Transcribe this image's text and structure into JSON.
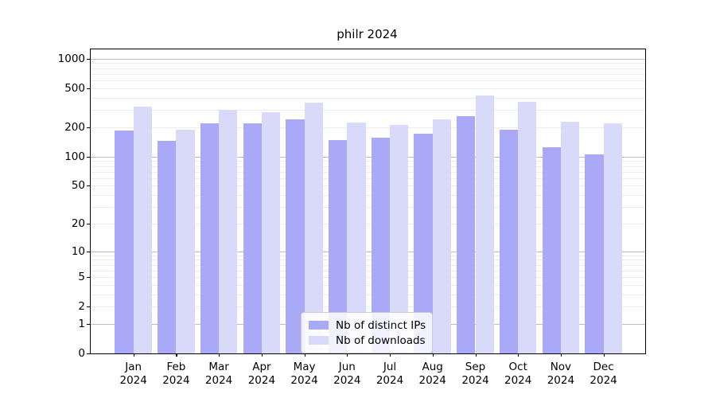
{
  "chart_data": {
    "type": "bar",
    "title": "philr 2024",
    "months": [
      "Jan",
      "Feb",
      "Mar",
      "Apr",
      "May",
      "Jun",
      "Jul",
      "Aug",
      "Sep",
      "Oct",
      "Nov",
      "Dec"
    ],
    "year": "2024",
    "categories": [
      "Jan 2024",
      "Feb 2024",
      "Mar 2024",
      "Apr 2024",
      "May 2024",
      "Jun 2024",
      "Jul 2024",
      "Aug 2024",
      "Sep 2024",
      "Oct 2024",
      "Nov 2024",
      "Dec 2024"
    ],
    "series": [
      {
        "name": "Nb of distinct IPs",
        "color": "#a9a9f8",
        "values": [
          184,
          145,
          220,
          218,
          240,
          147,
          157,
          172,
          260,
          190,
          124,
          106
        ]
      },
      {
        "name": "Nb of downloads",
        "color": "#d9d9fa",
        "values": [
          325,
          188,
          300,
          285,
          357,
          223,
          212,
          240,
          422,
          365,
          226,
          220
        ]
      }
    ],
    "xlabel": "",
    "ylabel": "",
    "y_scale": "log1p",
    "y_ticks": [
      0,
      1,
      2,
      5,
      10,
      20,
      50,
      100,
      200,
      500,
      1000
    ],
    "ylim": [
      0,
      1000
    ],
    "grid": true,
    "legend_position": "bottom-center"
  },
  "colors": {
    "major_grid": "#bdbdbd",
    "minor_grid": "#ececec",
    "axis": "#000000",
    "background": "#ffffff"
  }
}
